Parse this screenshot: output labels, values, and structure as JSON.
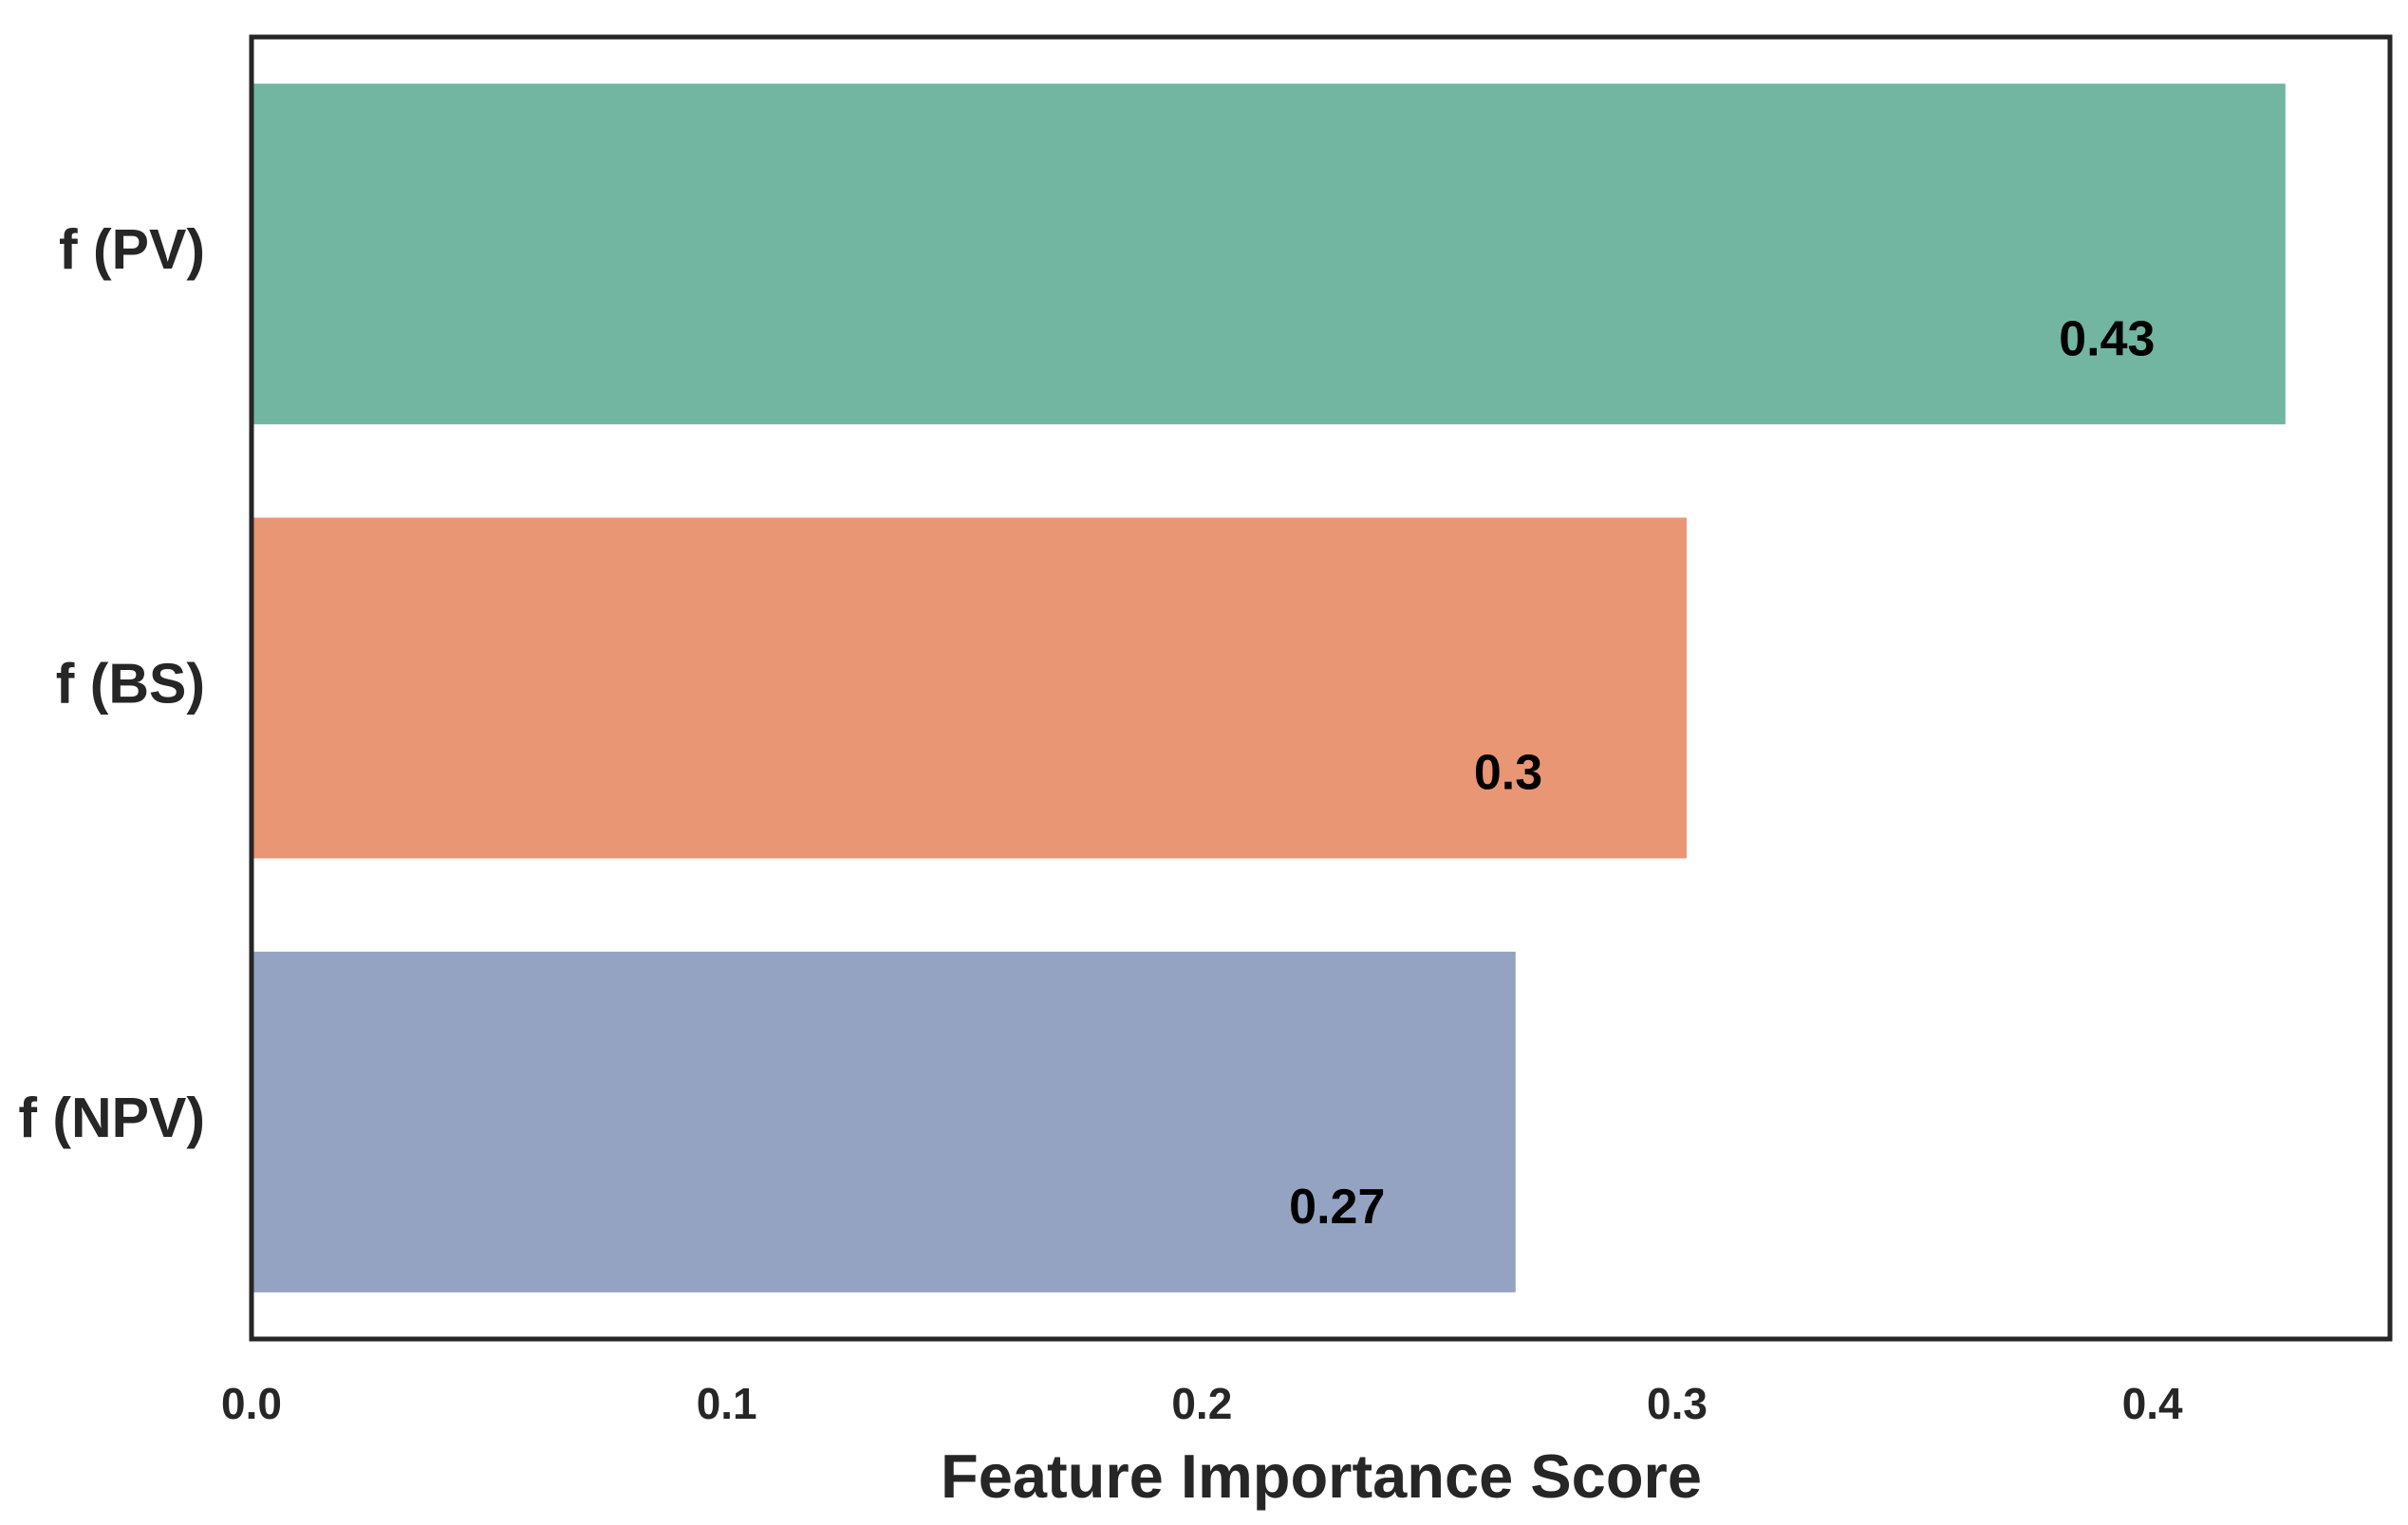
{
  "chart_data": {
    "type": "hbar",
    "xlabel": "Feature Importance Score",
    "categories": [
      "f (PV)",
      "f (BS)",
      "f (NPV)"
    ],
    "values": [
      0.428,
      0.302,
      0.266
    ],
    "value_labels": [
      "0.43",
      "0.3",
      "0.27"
    ],
    "colors": [
      "#72b6a1",
      "#e99675",
      "#95a3c3"
    ],
    "xlim": [
      0,
      0.45
    ],
    "xticks": [
      {
        "value": 0,
        "label": "0.0"
      },
      0.1,
      0.2,
      0.3,
      0.4
    ]
  }
}
